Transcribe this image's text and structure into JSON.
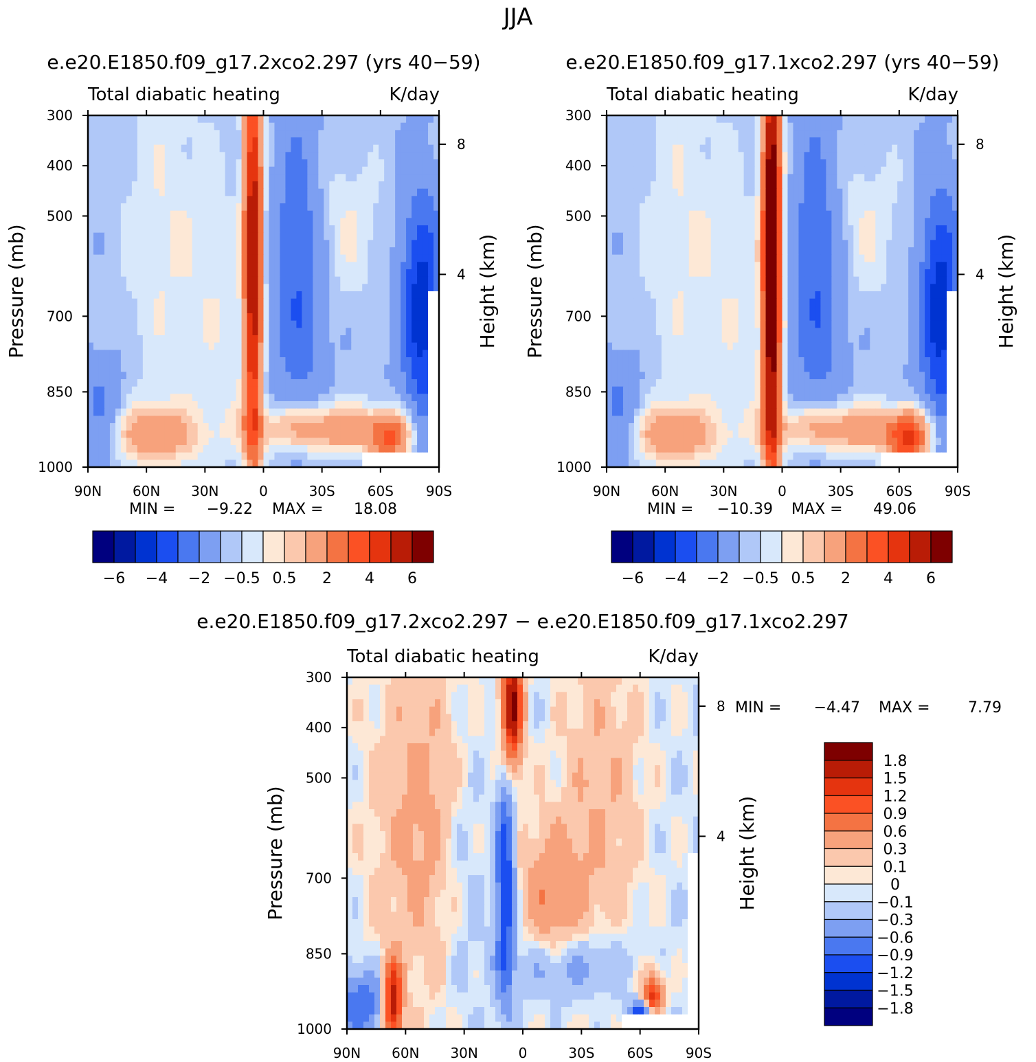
{
  "page_title": "JJA",
  "panel_common": {
    "inner_title": "Total diabatic heating",
    "units": "K/day",
    "ylabel": "Pressure (mb)",
    "ylabel_right": "Height (km)",
    "yticks": [
      300,
      400,
      500,
      700,
      850,
      1000
    ],
    "yticks_right": [
      "8",
      "4"
    ],
    "xticks": [
      "90N",
      "60N",
      "30N",
      "0",
      "30S",
      "60S",
      "90S"
    ]
  },
  "colors": {
    "neg": [
      "#00007f",
      "#0019a0",
      "#0033d1",
      "#1b4ef0",
      "#4a78f0",
      "#7d9ff2",
      "#b0c8f8",
      "#d8e8fb"
    ],
    "pos": [
      "#fde8d6",
      "#fbc8ad",
      "#f7a27c",
      "#f47343",
      "#fb5124",
      "#e5340f",
      "#b91c06",
      "#7e0000"
    ]
  },
  "chart_data": [
    {
      "type": "heatmap",
      "title": "e.e20.E1850.f09_g17.2xco2.297 (yrs 40−59)",
      "subtitle": "Total diabatic heating",
      "units": "K/day",
      "xlabel": "",
      "ylabel": "Pressure (mb)",
      "ylabel_right": "Height (km)",
      "xlim": [
        "90N",
        "90S"
      ],
      "ylim": [
        1000,
        300
      ],
      "min_label": "MIN =",
      "min": "−9.22",
      "max_label": "MAX =",
      "max": "18.08",
      "colorbar_ticks": [
        "−6",
        "−4",
        "−2",
        "−0.5",
        "0.5",
        "2",
        "4",
        "6"
      ]
    },
    {
      "type": "heatmap",
      "title": "e.e20.E1850.f09_g17.1xco2.297 (yrs 40−59)",
      "subtitle": "Total diabatic heating",
      "units": "K/day",
      "xlabel": "",
      "ylabel": "Pressure (mb)",
      "ylabel_right": "Height (km)",
      "xlim": [
        "90N",
        "90S"
      ],
      "ylim": [
        1000,
        300
      ],
      "min_label": "MIN =",
      "min": "−10.39",
      "max_label": "MAX =",
      "max": "49.06",
      "colorbar_ticks": [
        "−6",
        "−4",
        "−2",
        "−0.5",
        "0.5",
        "2",
        "4",
        "6"
      ]
    },
    {
      "type": "heatmap",
      "title": "e.e20.E1850.f09_g17.2xco2.297 − e.e20.E1850.f09_g17.1xco2.297",
      "subtitle": "Total diabatic heating",
      "units": "K/day",
      "xlabel": "",
      "ylabel": "Pressure (mb)",
      "ylabel_right": "Height (km)",
      "xlim": [
        "90N",
        "90S"
      ],
      "ylim": [
        1000,
        300
      ],
      "min_label": "MIN =",
      "min": "−4.47",
      "max_label": "MAX =",
      "max": "7.79",
      "colorbar_ticks": [
        "1.8",
        "1.5",
        "1.2",
        "0.9",
        "0.6",
        "0.3",
        "0.1",
        "0",
        "−0.1",
        "−0.3",
        "−0.6",
        "−0.9",
        "−1.2",
        "−1.5",
        "−1.8"
      ]
    }
  ]
}
